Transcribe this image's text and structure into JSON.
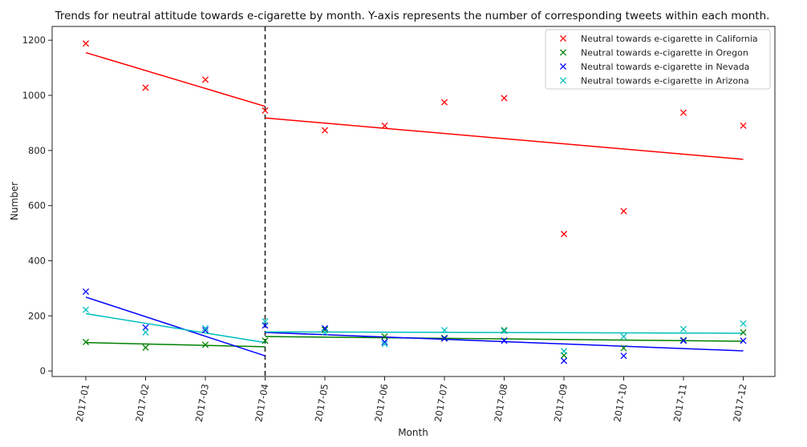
{
  "chart_data": {
    "type": "scatter",
    "title": "Trends for neutral attitude towards e-cigarette by month. Y-axis represents the number of corresponding tweets within each month.",
    "xlabel": "Month",
    "ylabel": "Number",
    "categories": [
      "2017-01",
      "2017-02",
      "2017-03",
      "2017-04",
      "2017-05",
      "2017-06",
      "2017-07",
      "2017-08",
      "2017-09",
      "2017-10",
      "2017-11",
      "2017-12"
    ],
    "yticks": [
      0,
      200,
      400,
      600,
      800,
      1000,
      1200
    ],
    "ylim": [
      -20,
      1250
    ],
    "grid": false,
    "legend_position": "top-right",
    "breakpoint": "2017-04",
    "series": [
      {
        "name": "Neutral towards e-cigarette in California",
        "color": "#ff0000",
        "values": [
          1188,
          1028,
          1057,
          945,
          873,
          890,
          975,
          990,
          497,
          580,
          937,
          890
        ],
        "trend_before": [
          1155,
          960
        ],
        "trend_after": [
          918,
          768
        ]
      },
      {
        "name": "Neutral towards e-cigarette in Oregon",
        "color": "#008000",
        "values": [
          105,
          85,
          95,
          110,
          150,
          125,
          120,
          148,
          57,
          83,
          112,
          140
        ],
        "trend_before": [
          103,
          88
        ],
        "trend_after": [
          125,
          108
        ]
      },
      {
        "name": "Neutral towards e-cigarette in Nevada",
        "color": "#0000ff",
        "values": [
          288,
          158,
          148,
          165,
          155,
          105,
          118,
          110,
          37,
          55,
          110,
          110
        ],
        "trend_before": [
          268,
          55
        ],
        "trend_after": [
          140,
          73
        ]
      },
      {
        "name": "Neutral towards e-cigarette in Arizona",
        "color": "#00bfbf",
        "values": [
          222,
          140,
          155,
          180,
          140,
          98,
          148,
          145,
          72,
          125,
          152,
          172
        ],
        "trend_before": [
          208,
          103
        ],
        "trend_after": [
          142,
          137
        ]
      }
    ]
  }
}
